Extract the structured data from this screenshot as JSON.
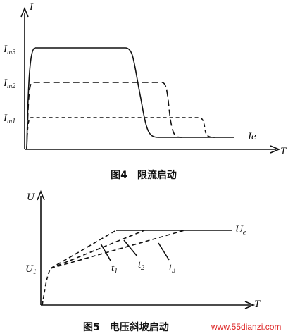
{
  "figure4": {
    "y_label": "I",
    "x_label": "T",
    "levels": [
      {
        "main": "I",
        "sub": "m3"
      },
      {
        "main": "I",
        "sub": "m2"
      },
      {
        "main": "I",
        "sub": "m1"
      }
    ],
    "end_label": "Ie",
    "caption": "图4　限流启动"
  },
  "figure5": {
    "y_label": "U",
    "x_label": "T",
    "start_label": {
      "main": "U",
      "sub": "1"
    },
    "end_label": {
      "main": "U",
      "sub": "e"
    },
    "times": [
      {
        "main": "t",
        "sub": "1"
      },
      {
        "main": "t",
        "sub": "2"
      },
      {
        "main": "t",
        "sub": "3"
      }
    ],
    "caption": "图5　电压斜坡启动"
  },
  "watermark": "www.55dianzi.com"
}
